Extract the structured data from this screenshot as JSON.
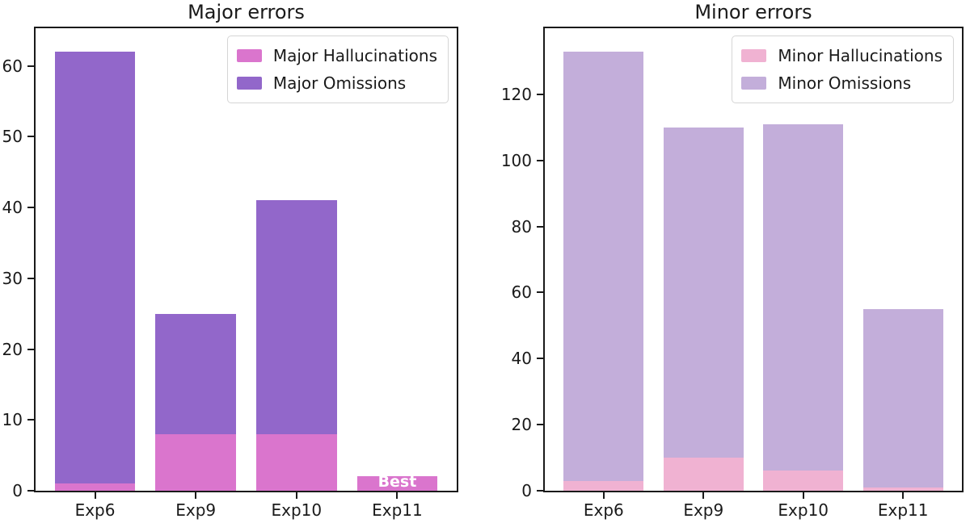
{
  "figure": {
    "background_color": "#ffffff",
    "text_color": "#1a1a1a",
    "spine_color": "#1a1a1a",
    "legend_border_color": "#d5d5d5"
  },
  "chart_data": [
    {
      "type": "bar",
      "stacked": true,
      "title": "Major errors",
      "categories": [
        "Exp6",
        "Exp9",
        "Exp10",
        "Exp11"
      ],
      "series": [
        {
          "name": "Major Hallucinations",
          "color": "#da75cd",
          "values": [
            1,
            8,
            8,
            2
          ]
        },
        {
          "name": "Major Omissions",
          "color": "#9267ca",
          "values": [
            61,
            17,
            33,
            0
          ]
        }
      ],
      "stack_totals": [
        62,
        25,
        41,
        2
      ],
      "xlabel": "",
      "ylabel": "",
      "ylim": [
        0,
        65.3
      ],
      "yticks": [
        0,
        10,
        20,
        30,
        40,
        50,
        60
      ],
      "grid": false,
      "legend_position": "upper right",
      "annotations": [
        {
          "text": "Best",
          "category_index": 3,
          "color": "#ffffff",
          "bold": true
        }
      ]
    },
    {
      "type": "bar",
      "stacked": true,
      "title": "Minor errors",
      "categories": [
        "Exp6",
        "Exp9",
        "Exp10",
        "Exp11"
      ],
      "series": [
        {
          "name": "Minor Hallucinations",
          "color": "#f0b2d2",
          "values": [
            3,
            10,
            6,
            1
          ]
        },
        {
          "name": "Minor Omissions",
          "color": "#c3aeda",
          "values": [
            130,
            100,
            105,
            54
          ]
        }
      ],
      "stack_totals": [
        133,
        110,
        111,
        55
      ],
      "xlabel": "",
      "ylabel": "",
      "ylim": [
        0,
        140.0
      ],
      "yticks": [
        0,
        20,
        40,
        60,
        80,
        100,
        120
      ],
      "grid": false,
      "legend_position": "upper right",
      "annotations": []
    }
  ]
}
